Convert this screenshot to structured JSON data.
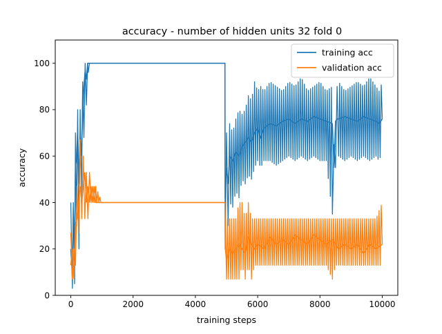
{
  "chart_data": {
    "type": "line",
    "title": "accuracy - number of hidden units 32 fold 0",
    "xlabel": "training steps",
    "ylabel": "accuracy",
    "xlim": [
      -500,
      10500
    ],
    "ylim": [
      0,
      110
    ],
    "xticks": [
      0,
      2000,
      4000,
      6000,
      8000,
      10000
    ],
    "yticks": [
      0,
      20,
      40,
      60,
      80,
      100
    ],
    "legend_position": "top-right",
    "grid": false,
    "series": [
      {
        "name": "training acc",
        "color": "#1f77b4",
        "x": [
          0,
          50,
          80,
          120,
          150,
          180,
          220,
          260,
          300,
          340,
          380,
          420,
          460,
          500,
          540,
          560,
          600,
          700,
          1000,
          2000,
          3000,
          4000,
          4950,
          4955,
          5000,
          5050,
          5100,
          5200,
          5300,
          5400,
          5500,
          5600,
          5700,
          5800,
          5900,
          6000,
          6100,
          6200,
          6400,
          6600,
          6800,
          7000,
          7200,
          7400,
          7600,
          7800,
          8000,
          8200,
          8400,
          8450,
          8500,
          8550,
          8600,
          8800,
          9000,
          9200,
          9400,
          9600,
          9800,
          9900,
          10000
        ],
        "y": [
          20,
          8,
          38,
          15,
          56,
          58,
          72,
          48,
          70,
          60,
          78,
          90,
          97,
          93,
          100,
          100,
          100,
          100,
          100,
          100,
          100,
          100,
          100,
          42,
          55,
          48,
          60,
          58,
          62,
          60,
          64,
          66,
          68,
          66,
          70,
          72,
          68,
          72,
          74,
          73,
          75,
          76,
          74,
          76,
          75,
          77,
          76,
          75,
          74,
          55,
          75,
          76,
          76,
          77,
          76,
          75,
          77,
          76,
          75,
          74,
          76
        ],
        "upper": [
          40,
          25,
          40,
          45,
          70,
          72,
          80,
          74,
          80,
          84,
          92,
          97,
          100,
          100,
          100,
          100,
          100,
          100,
          100,
          100,
          100,
          100,
          100,
          60,
          70,
          68,
          74,
          70,
          76,
          80,
          78,
          80,
          86,
          84,
          92,
          88,
          90,
          88,
          92,
          90,
          88,
          92,
          90,
          94,
          88,
          90,
          92,
          88,
          90,
          65,
          88,
          90,
          92,
          88,
          90,
          92,
          90,
          94,
          90,
          88,
          92
        ],
        "lower": [
          5,
          3,
          20,
          5,
          25,
          30,
          32,
          20,
          38,
          40,
          55,
          68,
          78,
          82,
          92,
          96,
          100,
          100,
          100,
          100,
          100,
          100,
          100,
          20,
          35,
          30,
          40,
          38,
          45,
          42,
          50,
          48,
          52,
          50,
          55,
          58,
          55,
          58,
          58,
          56,
          58,
          60,
          58,
          60,
          58,
          60,
          58,
          58,
          35,
          28,
          55,
          58,
          60,
          58,
          60,
          58,
          60,
          58,
          60,
          58,
          62
        ]
      },
      {
        "name": "validation acc",
        "color": "#ff7f0e",
        "x": [
          0,
          50,
          100,
          150,
          200,
          250,
          300,
          350,
          400,
          450,
          500,
          550,
          600,
          650,
          700,
          750,
          800,
          1000,
          2000,
          3000,
          4000,
          4950,
          4960,
          5000,
          5100,
          5200,
          5300,
          5400,
          5500,
          5600,
          5700,
          5800,
          5900,
          6000,
          6200,
          6400,
          6600,
          6800,
          7000,
          7200,
          7400,
          7600,
          7800,
          8000,
          8200,
          8400,
          8500,
          8600,
          8800,
          9000,
          9200,
          9400,
          9600,
          9800,
          10000
        ],
        "y": [
          13,
          20,
          7,
          30,
          33,
          40,
          47,
          40,
          47,
          53,
          40,
          47,
          40,
          47,
          40,
          47,
          40,
          40,
          40,
          40,
          40,
          40,
          20,
          15,
          20,
          18,
          20,
          22,
          20,
          18,
          25,
          22,
          20,
          22,
          20,
          25,
          22,
          24,
          22,
          26,
          24,
          22,
          26,
          24,
          22,
          24,
          22,
          20,
          22,
          20,
          22,
          18,
          22,
          20,
          22
        ],
        "upper": [
          27,
          27,
          20,
          40,
          47,
          53,
          67,
          60,
          60,
          53,
          53,
          53,
          53,
          47,
          47,
          47,
          47,
          40,
          40,
          40,
          40,
          40,
          33,
          33,
          33,
          33,
          33,
          40,
          40,
          33,
          40,
          33,
          33,
          33,
          33,
          33,
          33,
          33,
          33,
          33,
          33,
          33,
          33,
          33,
          33,
          33,
          33,
          33,
          33,
          33,
          33,
          33,
          33,
          33,
          40
        ],
        "lower": [
          0,
          7,
          0,
          13,
          20,
          27,
          33,
          33,
          33,
          33,
          33,
          33,
          33,
          40,
          40,
          40,
          40,
          40,
          40,
          40,
          40,
          40,
          13,
          7,
          7,
          7,
          7,
          7,
          13,
          7,
          13,
          7,
          13,
          13,
          13,
          13,
          13,
          13,
          13,
          13,
          13,
          13,
          13,
          13,
          13,
          7,
          13,
          13,
          13,
          13,
          13,
          13,
          13,
          13,
          13
        ]
      }
    ]
  }
}
